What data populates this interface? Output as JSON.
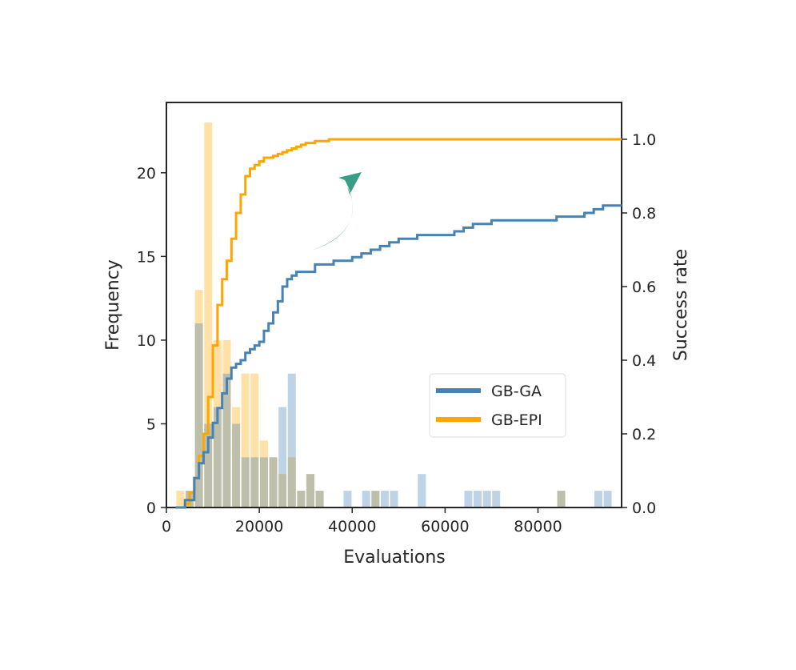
{
  "chart_data": {
    "type": "histogram+step",
    "xlabel": "Evaluations",
    "ylabel_left": "Frequency",
    "ylabel_right": "Success rate",
    "xlim": [
      0,
      98000
    ],
    "ylim_left": [
      0,
      24.2
    ],
    "ylim_right": [
      0,
      1.1
    ],
    "x_ticks": [
      0,
      20000,
      40000,
      60000,
      80000
    ],
    "x_tick_labels": [
      "0",
      "20000",
      "40000",
      "60000",
      "80000"
    ],
    "y_left_ticks": [
      0,
      5,
      10,
      15,
      20
    ],
    "y_left_tick_labels": [
      "0",
      "5",
      "10",
      "15",
      "20"
    ],
    "y_right_ticks": [
      0,
      0.2,
      0.4,
      0.6,
      0.8,
      1.0
    ],
    "y_right_tick_labels": [
      "0.0",
      "0.2",
      "0.4",
      "0.6",
      "0.8",
      "1.0"
    ],
    "bin_width": 2000,
    "histograms": [
      {
        "name": "GB-EPI",
        "color": "#ffa500",
        "opacity": 0.35,
        "bins": [
          {
            "x": 2000,
            "count": 1
          },
          {
            "x": 4000,
            "count": 1
          },
          {
            "x": 6000,
            "count": 13
          },
          {
            "x": 8000,
            "count": 23
          },
          {
            "x": 10000,
            "count": 10
          },
          {
            "x": 12000,
            "count": 10
          },
          {
            "x": 14000,
            "count": 6
          },
          {
            "x": 16000,
            "count": 8
          },
          {
            "x": 18000,
            "count": 8
          },
          {
            "x": 20000,
            "count": 4
          },
          {
            "x": 22000,
            "count": 3
          },
          {
            "x": 24000,
            "count": 2
          },
          {
            "x": 26000,
            "count": 3
          },
          {
            "x": 28000,
            "count": 1
          },
          {
            "x": 30000,
            "count": 2
          },
          {
            "x": 32000,
            "count": 1
          },
          {
            "x": 44000,
            "count": 1
          },
          {
            "x": 84000,
            "count": 1
          }
        ]
      },
      {
        "name": "GB-GA",
        "color": "#4682b4",
        "opacity": 0.35,
        "bins": [
          {
            "x": 4000,
            "count": 1
          },
          {
            "x": 6000,
            "count": 11
          },
          {
            "x": 8000,
            "count": 5
          },
          {
            "x": 10000,
            "count": 6
          },
          {
            "x": 12000,
            "count": 8
          },
          {
            "x": 14000,
            "count": 5
          },
          {
            "x": 16000,
            "count": 3
          },
          {
            "x": 18000,
            "count": 3
          },
          {
            "x": 20000,
            "count": 3
          },
          {
            "x": 22000,
            "count": 3
          },
          {
            "x": 24000,
            "count": 6
          },
          {
            "x": 26000,
            "count": 8
          },
          {
            "x": 28000,
            "count": 1
          },
          {
            "x": 30000,
            "count": 2
          },
          {
            "x": 32000,
            "count": 1
          },
          {
            "x": 38000,
            "count": 1
          },
          {
            "x": 42000,
            "count": 1
          },
          {
            "x": 44000,
            "count": 1
          },
          {
            "x": 46000,
            "count": 1
          },
          {
            "x": 48000,
            "count": 1
          },
          {
            "x": 54000,
            "count": 2
          },
          {
            "x": 64000,
            "count": 1
          },
          {
            "x": 66000,
            "count": 1
          },
          {
            "x": 68000,
            "count": 1
          },
          {
            "x": 70000,
            "count": 1
          },
          {
            "x": 84000,
            "count": 1
          },
          {
            "x": 92000,
            "count": 1
          },
          {
            "x": 94000,
            "count": 1
          }
        ]
      }
    ],
    "series": [
      {
        "name": "GB-EPI",
        "color": "#ffa500",
        "type": "step",
        "x": [
          2000,
          4000,
          5000,
          6000,
          7000,
          8000,
          9000,
          10000,
          11000,
          12000,
          13000,
          14000,
          15000,
          16000,
          17000,
          18000,
          19000,
          20000,
          21000,
          22000,
          23000,
          24000,
          25000,
          26000,
          27000,
          28000,
          29000,
          30000,
          31000,
          32000,
          33000,
          35000,
          40000,
          44000,
          48000,
          60000,
          80000,
          84000,
          98000
        ],
        "y": [
          0.0,
          0.01,
          0.04,
          0.08,
          0.14,
          0.2,
          0.3,
          0.44,
          0.55,
          0.62,
          0.67,
          0.73,
          0.8,
          0.85,
          0.9,
          0.92,
          0.93,
          0.94,
          0.95,
          0.95,
          0.955,
          0.96,
          0.965,
          0.97,
          0.975,
          0.98,
          0.985,
          0.99,
          0.99,
          0.995,
          0.995,
          1.0,
          1.0,
          1.0,
          1.0,
          1.0,
          1.0,
          1.0,
          1.0
        ]
      },
      {
        "name": "GB-GA",
        "color": "#4682b4",
        "type": "step",
        "x": [
          2000,
          4000,
          6000,
          7000,
          8000,
          9000,
          10000,
          11000,
          12000,
          13000,
          14000,
          15000,
          16000,
          17000,
          18000,
          19000,
          20000,
          21000,
          22000,
          23000,
          24000,
          25000,
          26000,
          27000,
          28000,
          29000,
          30000,
          32000,
          34000,
          36000,
          38000,
          40000,
          42000,
          44000,
          46000,
          48000,
          50000,
          54000,
          56000,
          58000,
          60000,
          62000,
          64000,
          66000,
          68000,
          70000,
          72000,
          84000,
          86000,
          88000,
          90000,
          92000,
          94000,
          96000
        ],
        "y": [
          0.0,
          0.02,
          0.08,
          0.12,
          0.15,
          0.19,
          0.23,
          0.27,
          0.31,
          0.35,
          0.38,
          0.39,
          0.4,
          0.42,
          0.43,
          0.44,
          0.45,
          0.48,
          0.5,
          0.53,
          0.56,
          0.6,
          0.62,
          0.63,
          0.64,
          0.64,
          0.64,
          0.66,
          0.66,
          0.67,
          0.67,
          0.68,
          0.69,
          0.7,
          0.71,
          0.72,
          0.73,
          0.74,
          0.74,
          0.74,
          0.74,
          0.75,
          0.76,
          0.77,
          0.77,
          0.78,
          0.78,
          0.79,
          0.79,
          0.79,
          0.8,
          0.81,
          0.82,
          0.82
        ]
      }
    ],
    "legend": {
      "placement": "center-right",
      "entries": [
        {
          "label": "GB-GA",
          "color": "#4682b4"
        },
        {
          "label": "GB-EPI",
          "color": "#ffa500"
        }
      ]
    },
    "annotation": {
      "type": "curved-arrow",
      "color": "#3a9e87",
      "from_series": "GB-GA",
      "to_series": "GB-EPI"
    }
  }
}
